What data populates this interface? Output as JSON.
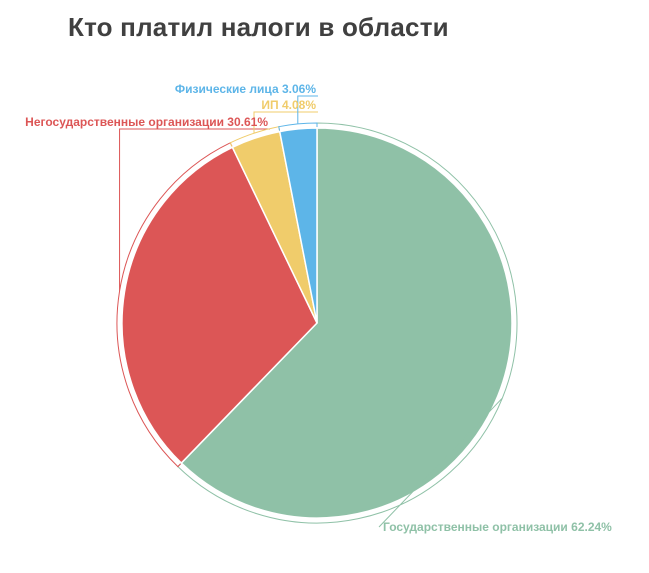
{
  "chart_data": {
    "type": "pie",
    "title": "Кто платил налоги в области",
    "slices": [
      {
        "name": "Государственные организации",
        "value": 62.24,
        "label": "Государственные организации 62.24%",
        "color": "#8fc1a7"
      },
      {
        "name": "Негосударственные организации",
        "value": 30.61,
        "label": "Негосударственные организации 30.61%",
        "color": "#dc5656"
      },
      {
        "name": "ИП",
        "value": 4.08,
        "label": "ИП 4.08%",
        "color": "#f0cc6b"
      },
      {
        "name": "Физические лица",
        "value": 3.06,
        "label": "Физические лица 3.06%",
        "color": "#5db5e8"
      }
    ],
    "start_angle": "12 o'clock",
    "direction": "clockwise",
    "legend": "none"
  }
}
